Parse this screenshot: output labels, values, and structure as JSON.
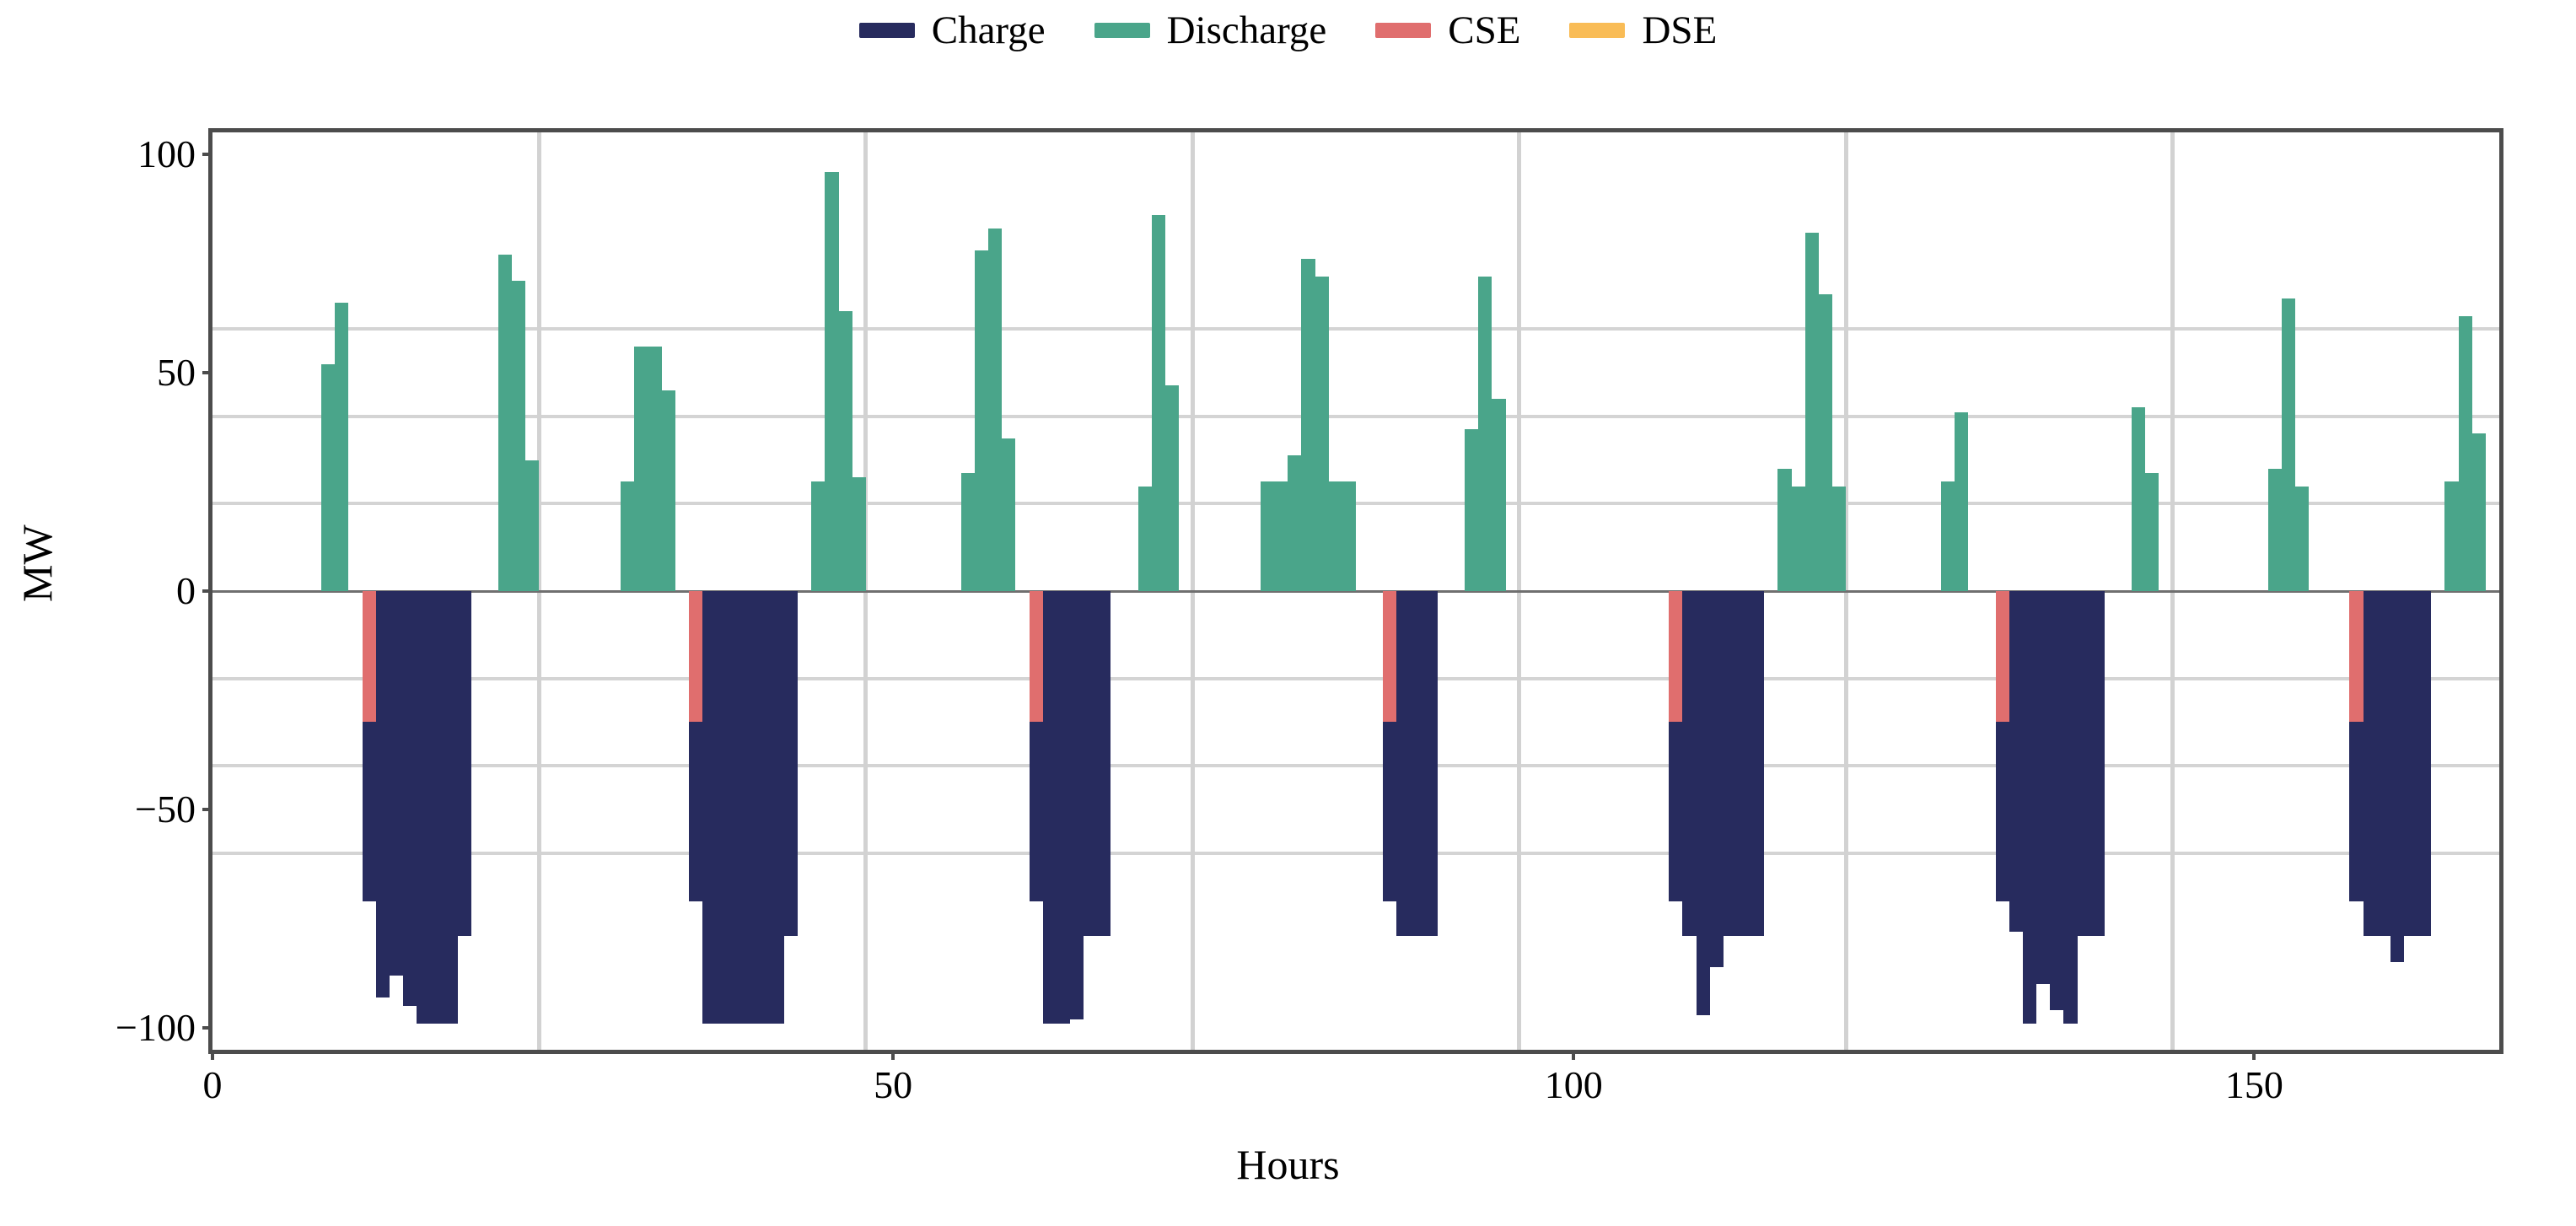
{
  "chart_data": {
    "type": "bar",
    "title": "",
    "xlabel": "Hours",
    "ylabel": "MW",
    "xlim": [
      0,
      168
    ],
    "ylim": [
      -105,
      105
    ],
    "bar_width_hours": 1,
    "grid": "on",
    "x_gridlines_hours": [
      24,
      48,
      72,
      96,
      120,
      144
    ],
    "y_gridlines_mw": [
      -60,
      -40,
      -20,
      20,
      40,
      60
    ],
    "xticks": [
      0,
      50,
      100,
      150
    ],
    "xtick_labels": [
      "0",
      "50",
      "100",
      "150"
    ],
    "yticks": [
      100,
      50,
      0,
      -50,
      -100
    ],
    "ytick_labels": [
      "100",
      "50",
      "0",
      "−50",
      "−100"
    ],
    "legend_position": "top-center",
    "stacking_note": "Negative bars stack: CSE segment from 0 down to -30, Charge segment continues below it. Values are MW per hour of a 168-hour week.",
    "series": [
      {
        "name": "Charge",
        "color": "#272B5E",
        "values": {
          "11": -41,
          "12": -93,
          "13": -88,
          "14": -95,
          "15": -99,
          "16": -99,
          "17": -99,
          "18": -79,
          "35": -41,
          "36": -99,
          "37": -99,
          "38": -99,
          "39": -99,
          "40": -99,
          "41": -99,
          "42": -79,
          "60": -41,
          "61": -99,
          "62": -99,
          "63": -98,
          "64": -79,
          "65": -79,
          "86": -41,
          "87": -79,
          "88": -79,
          "89": -79,
          "107": -41,
          "108": -79,
          "109": -97,
          "110": -86,
          "111": -79,
          "112": -79,
          "113": -79,
          "131": -41,
          "132": -78,
          "133": -99,
          "134": -90,
          "135": -96,
          "136": -99,
          "137": -79,
          "138": -79,
          "157": -41,
          "158": -79,
          "159": -79,
          "160": -85,
          "161": -79,
          "162": -79
        }
      },
      {
        "name": "Discharge",
        "color": "#4AA58A",
        "values": {
          "8": 52,
          "9": 66,
          "21": 77,
          "22": 71,
          "23": 30,
          "30": 25,
          "31": 56,
          "32": 56,
          "33": 46,
          "44": 25,
          "45": 96,
          "46": 64,
          "47": 26,
          "55": 27,
          "56": 78,
          "57": 83,
          "58": 35,
          "68": 24,
          "69": 86,
          "70": 47,
          "77": 25,
          "78": 25,
          "79": 31,
          "80": 76,
          "81": 72,
          "82": 25,
          "83": 25,
          "92": 37,
          "93": 72,
          "94": 44,
          "115": 28,
          "116": 24,
          "117": 82,
          "118": 68,
          "119": 24,
          "127": 25,
          "128": 41,
          "141": 42,
          "142": 27,
          "151": 28,
          "152": 67,
          "153": 24,
          "164": 25,
          "165": 63,
          "166": 36
        }
      },
      {
        "name": "CSE",
        "color": "#E06E6E",
        "values": {
          "11": -30,
          "35": -30,
          "60": -30,
          "86": -30,
          "107": -30,
          "131": -30,
          "157": -30
        }
      },
      {
        "name": "DSE",
        "color": "#F9BC56",
        "values": {}
      }
    ]
  },
  "legend": {
    "items": [
      {
        "label": "Charge"
      },
      {
        "label": "Discharge"
      },
      {
        "label": "CSE"
      },
      {
        "label": "DSE"
      }
    ]
  }
}
